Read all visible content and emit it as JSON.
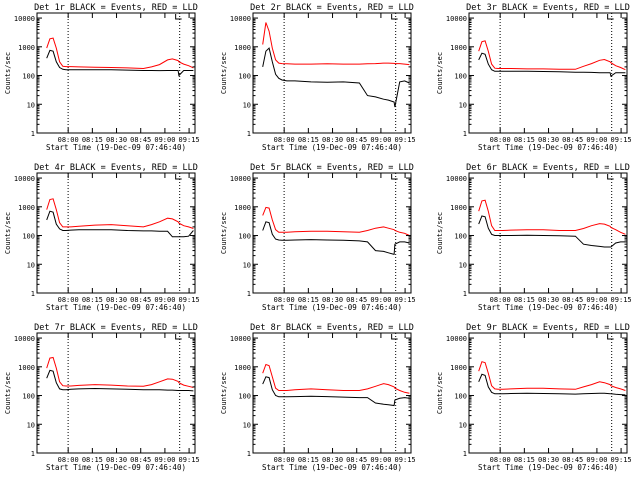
{
  "colors": {
    "background": "#ffffff",
    "axes": "#000000",
    "events_series": "#000000",
    "lld_series": "#ff0000"
  },
  "chart_data": [
    {
      "type": "line",
      "title": "Det 1r BLACK = Events, RED = LLD",
      "xlabel": "Start Time (19-Dec-09 07:46:40)",
      "ylabel": "Counts/sec",
      "x_ticks": [
        "08:00",
        "08:15",
        "08:30",
        "08:45",
        "09:00",
        "09:15"
      ],
      "y_ticks": [
        "1",
        "10",
        "100",
        "1000",
        "10000"
      ],
      "y_scale": "log",
      "xlim_minutes": [
        -6,
        92
      ],
      "ylim": [
        1,
        15000
      ],
      "dotted_vlines_minutes": [
        13.3,
        82.5
      ],
      "x_minutes": [
        0,
        2,
        4,
        6,
        8,
        10,
        12,
        15,
        20,
        30,
        40,
        50,
        60,
        65,
        70,
        75,
        78,
        81.5,
        82,
        85,
        88,
        91
      ],
      "series": [
        {
          "name": "",
          "color": "red",
          "values": [
            900,
            1900,
            2000,
            900,
            300,
            210,
            205,
            205,
            200,
            195,
            190,
            185,
            175,
            200,
            240,
            350,
            380,
            330,
            300,
            250,
            220,
            185
          ]
        },
        {
          "name": "",
          "color": "black",
          "values": [
            400,
            750,
            700,
            300,
            190,
            165,
            160,
            160,
            160,
            160,
            158,
            155,
            150,
            150,
            148,
            150,
            150,
            150,
            100,
            150,
            150,
            150
          ]
        }
      ]
    },
    {
      "type": "line",
      "title": "Det 2r BLACK = Events, RED = LLD",
      "xlabel": "Start Time (19-Dec-09 07:46:40)",
      "ylabel": "Counts/sec",
      "x_ticks": [
        "08:00",
        "08:15",
        "08:30",
        "08:45",
        "09:00",
        "09:15"
      ],
      "y_ticks": [
        "1",
        "10",
        "100",
        "1000",
        "10000"
      ],
      "y_scale": "log",
      "xlim_minutes": [
        -6,
        92
      ],
      "ylim": [
        1,
        15000
      ],
      "dotted_vlines_minutes": [
        13.3,
        82.5
      ],
      "x_minutes": [
        0,
        2,
        4,
        6,
        8,
        10,
        12,
        15,
        20,
        30,
        40,
        50,
        60,
        65,
        70,
        75,
        78,
        81.5,
        82,
        85,
        88,
        91
      ],
      "series": [
        {
          "name": "",
          "color": "red",
          "values": [
            1200,
            7000,
            3500,
            900,
            350,
            270,
            260,
            255,
            250,
            250,
            255,
            250,
            250,
            255,
            260,
            270,
            270,
            265,
            260,
            260,
            250,
            240
          ]
        },
        {
          "name": "",
          "color": "black",
          "values": [
            200,
            700,
            900,
            300,
            110,
            80,
            70,
            65,
            65,
            60,
            58,
            60,
            55,
            20,
            18,
            15,
            14,
            12,
            8,
            60,
            65,
            55
          ]
        }
      ]
    },
    {
      "type": "line",
      "title": "Det 3r BLACK = Events, RED = LLD",
      "xlabel": "Start Time (19-Dec-09 07:46:40)",
      "ylabel": "Counts/sec",
      "x_ticks": [
        "08:00",
        "08:15",
        "08:30",
        "08:45",
        "09:00",
        "09:15"
      ],
      "y_ticks": [
        "1",
        "10",
        "100",
        "1000",
        "10000"
      ],
      "y_scale": "log",
      "xlim_minutes": [
        -6,
        92
      ],
      "ylim": [
        1,
        15000
      ],
      "dotted_vlines_minutes": [
        13.3,
        82.5
      ],
      "x_minutes": [
        0,
        2,
        4,
        6,
        8,
        10,
        12,
        15,
        20,
        30,
        40,
        50,
        60,
        65,
        70,
        75,
        78,
        81.5,
        82,
        85,
        88,
        91
      ],
      "series": [
        {
          "name": "",
          "color": "red",
          "values": [
            700,
            1500,
            1600,
            700,
            250,
            180,
            175,
            175,
            175,
            170,
            170,
            165,
            165,
            210,
            260,
            340,
            360,
            300,
            280,
            220,
            190,
            160
          ]
        },
        {
          "name": "",
          "color": "black",
          "values": [
            350,
            600,
            550,
            250,
            160,
            140,
            140,
            140,
            140,
            140,
            138,
            135,
            130,
            130,
            128,
            125,
            125,
            125,
            95,
            125,
            125,
            125
          ]
        }
      ]
    },
    {
      "type": "line",
      "title": "Det 4r BLACK = Events, RED = LLD",
      "xlabel": "Start Time (19-Dec-09 07:46:40)",
      "ylabel": "Counts/sec",
      "x_ticks": [
        "08:00",
        "08:15",
        "08:30",
        "08:45",
        "09:00",
        "09:15"
      ],
      "y_ticks": [
        "1",
        "10",
        "100",
        "1000",
        "10000"
      ],
      "y_scale": "log",
      "xlim_minutes": [
        -6,
        92
      ],
      "ylim": [
        1,
        15000
      ],
      "dotted_vlines_minutes": [
        13.3,
        82.5
      ],
      "x_minutes": [
        0,
        2,
        4,
        6,
        8,
        10,
        12,
        15,
        20,
        30,
        40,
        50,
        60,
        65,
        70,
        75,
        78,
        81.5,
        82,
        85,
        88,
        91
      ],
      "series": [
        {
          "name": "",
          "color": "red",
          "values": [
            800,
            1800,
            1900,
            800,
            280,
            200,
            200,
            200,
            210,
            230,
            240,
            220,
            200,
            240,
            300,
            400,
            380,
            300,
            270,
            220,
            200,
            175
          ]
        },
        {
          "name": "",
          "color": "black",
          "values": [
            350,
            700,
            650,
            250,
            170,
            150,
            150,
            155,
            160,
            160,
            160,
            150,
            145,
            145,
            140,
            140,
            90,
            90,
            90,
            90,
            95,
            150
          ]
        }
      ]
    },
    {
      "type": "line",
      "title": "Det 5r BLACK = Events, RED = LLD",
      "xlabel": "Start Time (19-Dec-09 07:46:40)",
      "ylabel": "Counts/sec",
      "x_ticks": [
        "08:00",
        "08:15",
        "08:30",
        "08:45",
        "09:00",
        "09:15"
      ],
      "y_ticks": [
        "1",
        "10",
        "100",
        "1000",
        "10000"
      ],
      "y_scale": "log",
      "xlim_minutes": [
        -6,
        92
      ],
      "ylim": [
        1,
        15000
      ],
      "dotted_vlines_minutes": [
        13.3,
        82.5
      ],
      "x_minutes": [
        0,
        2,
        4,
        6,
        8,
        10,
        12,
        15,
        20,
        30,
        40,
        50,
        60,
        65,
        70,
        75,
        78,
        81.5,
        82,
        85,
        88,
        91
      ],
      "series": [
        {
          "name": "",
          "color": "red",
          "values": [
            500,
            950,
            900,
            350,
            160,
            130,
            130,
            130,
            135,
            140,
            140,
            135,
            130,
            150,
            180,
            200,
            180,
            160,
            150,
            130,
            120,
            100
          ]
        },
        {
          "name": "",
          "color": "black",
          "values": [
            150,
            300,
            280,
            110,
            75,
            70,
            68,
            68,
            70,
            72,
            70,
            68,
            65,
            60,
            30,
            28,
            25,
            22,
            50,
            60,
            60,
            55
          ]
        }
      ]
    },
    {
      "type": "line",
      "title": "Det 6r BLACK = Events, RED = LLD",
      "xlabel": "Start Time (19-Dec-09 07:46:40)",
      "ylabel": "Counts/sec",
      "x_ticks": [
        "08:00",
        "08:15",
        "08:30",
        "08:45",
        "09:00",
        "09:15"
      ],
      "y_ticks": [
        "1",
        "10",
        "100",
        "1000",
        "10000"
      ],
      "y_scale": "log",
      "xlim_minutes": [
        -6,
        92
      ],
      "ylim": [
        1,
        15000
      ],
      "dotted_vlines_minutes": [
        13.3,
        82.5
      ],
      "x_minutes": [
        0,
        2,
        4,
        6,
        8,
        10,
        12,
        15,
        20,
        30,
        40,
        50,
        60,
        65,
        70,
        75,
        78,
        81.5,
        82,
        85,
        88,
        91
      ],
      "series": [
        {
          "name": "",
          "color": "red",
          "values": [
            700,
            1600,
            1700,
            700,
            220,
            150,
            150,
            150,
            155,
            160,
            160,
            150,
            150,
            175,
            220,
            260,
            250,
            210,
            190,
            160,
            130,
            110
          ]
        },
        {
          "name": "",
          "color": "black",
          "values": [
            250,
            480,
            450,
            180,
            110,
            100,
            100,
            100,
            100,
            102,
            100,
            98,
            95,
            50,
            45,
            42,
            40,
            40,
            40,
            55,
            60,
            60
          ]
        }
      ]
    },
    {
      "type": "line",
      "title": "Det 7r BLACK = Events, RED = LLD",
      "xlabel": "Start Time (19-Dec-09 07:46:40)",
      "ylabel": "Counts/sec",
      "x_ticks": [
        "08:00",
        "08:15",
        "08:30",
        "08:45",
        "09:00",
        "09:15"
      ],
      "y_ticks": [
        "1",
        "10",
        "100",
        "1000",
        "10000"
      ],
      "y_scale": "log",
      "xlim_minutes": [
        -6,
        92
      ],
      "ylim": [
        1,
        15000
      ],
      "dotted_vlines_minutes": [
        13.3,
        82.5
      ],
      "x_minutes": [
        0,
        2,
        4,
        6,
        8,
        10,
        12,
        15,
        20,
        30,
        40,
        50,
        60,
        65,
        70,
        75,
        78,
        81.5,
        82,
        85,
        88,
        91
      ],
      "series": [
        {
          "name": "",
          "color": "red",
          "values": [
            900,
            2000,
            2100,
            900,
            300,
            220,
            215,
            215,
            225,
            240,
            230,
            215,
            210,
            240,
            300,
            380,
            370,
            310,
            280,
            230,
            210,
            190
          ]
        },
        {
          "name": "",
          "color": "black",
          "values": [
            400,
            750,
            700,
            280,
            170,
            160,
            160,
            165,
            170,
            175,
            170,
            165,
            160,
            160,
            158,
            155,
            155,
            150,
            150,
            150,
            150,
            145
          ]
        }
      ]
    },
    {
      "type": "line",
      "title": "Det 8r BLACK = Events, RED = LLD",
      "xlabel": "Start Time (19-Dec-09 07:46:40)",
      "ylabel": "Counts/sec",
      "x_ticks": [
        "08:00",
        "08:15",
        "08:30",
        "08:45",
        "09:00",
        "09:15"
      ],
      "y_ticks": [
        "1",
        "10",
        "100",
        "1000",
        "10000"
      ],
      "y_scale": "log",
      "xlim_minutes": [
        -6,
        92
      ],
      "ylim": [
        1,
        15000
      ],
      "dotted_vlines_minutes": [
        13.3,
        82.5
      ],
      "x_minutes": [
        0,
        2,
        4,
        6,
        8,
        10,
        12,
        15,
        20,
        30,
        40,
        50,
        60,
        65,
        70,
        75,
        78,
        81.5,
        82,
        85,
        88,
        91
      ],
      "series": [
        {
          "name": "",
          "color": "red",
          "values": [
            600,
            1200,
            1100,
            450,
            180,
            150,
            150,
            150,
            160,
            170,
            160,
            150,
            150,
            170,
            210,
            260,
            240,
            200,
            180,
            150,
            130,
            120
          ]
        },
        {
          "name": "",
          "color": "black",
          "values": [
            250,
            450,
            420,
            160,
            100,
            90,
            90,
            90,
            92,
            95,
            92,
            88,
            85,
            85,
            55,
            50,
            48,
            45,
            70,
            80,
            85,
            80
          ]
        }
      ]
    },
    {
      "type": "line",
      "title": "Det 9r BLACK = Events, RED = LLD",
      "xlabel": "Start Time (19-Dec-09 07:46:40)",
      "ylabel": "Counts/sec",
      "x_ticks": [
        "08:00",
        "08:15",
        "08:30",
        "08:45",
        "09:00",
        "09:15"
      ],
      "y_ticks": [
        "1",
        "10",
        "100",
        "1000",
        "10000"
      ],
      "y_scale": "log",
      "xlim_minutes": [
        -6,
        92
      ],
      "ylim": [
        1,
        15000
      ],
      "dotted_vlines_minutes": [
        13.3,
        82.5
      ],
      "x_minutes": [
        0,
        2,
        4,
        6,
        8,
        10,
        12,
        15,
        20,
        30,
        40,
        50,
        60,
        65,
        70,
        75,
        78,
        81.5,
        82,
        85,
        88,
        91
      ],
      "series": [
        {
          "name": "",
          "color": "red",
          "values": [
            700,
            1500,
            1400,
            600,
            220,
            170,
            165,
            165,
            170,
            180,
            180,
            170,
            165,
            200,
            240,
            300,
            280,
            240,
            220,
            190,
            170,
            150
          ]
        },
        {
          "name": "",
          "color": "black",
          "values": [
            300,
            550,
            500,
            200,
            130,
            115,
            115,
            115,
            118,
            120,
            118,
            115,
            112,
            115,
            118,
            120,
            120,
            115,
            115,
            110,
            108,
            105
          ]
        }
      ]
    }
  ]
}
